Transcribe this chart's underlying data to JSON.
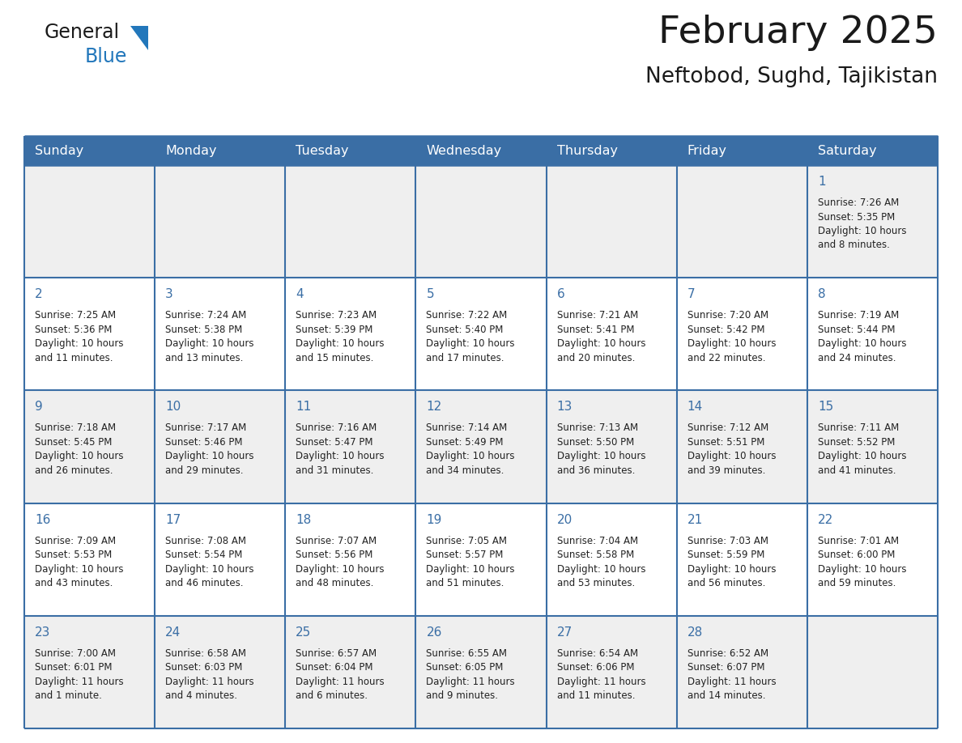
{
  "title": "February 2025",
  "subtitle": "Neftobod, Sughd, Tajikistan",
  "days_of_week": [
    "Sunday",
    "Monday",
    "Tuesday",
    "Wednesday",
    "Thursday",
    "Friday",
    "Saturday"
  ],
  "header_bg": "#3a6ea5",
  "header_text_color": "#ffffff",
  "odd_row_bg": "#efefef",
  "even_row_bg": "#ffffff",
  "cell_text_color": "#222222",
  "day_number_color": "#3a6ea5",
  "grid_color": "#3a6ea5",
  "calendar": [
    [
      null,
      null,
      null,
      null,
      null,
      null,
      {
        "day": 1,
        "sunrise": "7:26 AM",
        "sunset": "5:35 PM",
        "daylight": "10 hours\nand 8 minutes."
      }
    ],
    [
      {
        "day": 2,
        "sunrise": "7:25 AM",
        "sunset": "5:36 PM",
        "daylight": "10 hours\nand 11 minutes."
      },
      {
        "day": 3,
        "sunrise": "7:24 AM",
        "sunset": "5:38 PM",
        "daylight": "10 hours\nand 13 minutes."
      },
      {
        "day": 4,
        "sunrise": "7:23 AM",
        "sunset": "5:39 PM",
        "daylight": "10 hours\nand 15 minutes."
      },
      {
        "day": 5,
        "sunrise": "7:22 AM",
        "sunset": "5:40 PM",
        "daylight": "10 hours\nand 17 minutes."
      },
      {
        "day": 6,
        "sunrise": "7:21 AM",
        "sunset": "5:41 PM",
        "daylight": "10 hours\nand 20 minutes."
      },
      {
        "day": 7,
        "sunrise": "7:20 AM",
        "sunset": "5:42 PM",
        "daylight": "10 hours\nand 22 minutes."
      },
      {
        "day": 8,
        "sunrise": "7:19 AM",
        "sunset": "5:44 PM",
        "daylight": "10 hours\nand 24 minutes."
      }
    ],
    [
      {
        "day": 9,
        "sunrise": "7:18 AM",
        "sunset": "5:45 PM",
        "daylight": "10 hours\nand 26 minutes."
      },
      {
        "day": 10,
        "sunrise": "7:17 AM",
        "sunset": "5:46 PM",
        "daylight": "10 hours\nand 29 minutes."
      },
      {
        "day": 11,
        "sunrise": "7:16 AM",
        "sunset": "5:47 PM",
        "daylight": "10 hours\nand 31 minutes."
      },
      {
        "day": 12,
        "sunrise": "7:14 AM",
        "sunset": "5:49 PM",
        "daylight": "10 hours\nand 34 minutes."
      },
      {
        "day": 13,
        "sunrise": "7:13 AM",
        "sunset": "5:50 PM",
        "daylight": "10 hours\nand 36 minutes."
      },
      {
        "day": 14,
        "sunrise": "7:12 AM",
        "sunset": "5:51 PM",
        "daylight": "10 hours\nand 39 minutes."
      },
      {
        "day": 15,
        "sunrise": "7:11 AM",
        "sunset": "5:52 PM",
        "daylight": "10 hours\nand 41 minutes."
      }
    ],
    [
      {
        "day": 16,
        "sunrise": "7:09 AM",
        "sunset": "5:53 PM",
        "daylight": "10 hours\nand 43 minutes."
      },
      {
        "day": 17,
        "sunrise": "7:08 AM",
        "sunset": "5:54 PM",
        "daylight": "10 hours\nand 46 minutes."
      },
      {
        "day": 18,
        "sunrise": "7:07 AM",
        "sunset": "5:56 PM",
        "daylight": "10 hours\nand 48 minutes."
      },
      {
        "day": 19,
        "sunrise": "7:05 AM",
        "sunset": "5:57 PM",
        "daylight": "10 hours\nand 51 minutes."
      },
      {
        "day": 20,
        "sunrise": "7:04 AM",
        "sunset": "5:58 PM",
        "daylight": "10 hours\nand 53 minutes."
      },
      {
        "day": 21,
        "sunrise": "7:03 AM",
        "sunset": "5:59 PM",
        "daylight": "10 hours\nand 56 minutes."
      },
      {
        "day": 22,
        "sunrise": "7:01 AM",
        "sunset": "6:00 PM",
        "daylight": "10 hours\nand 59 minutes."
      }
    ],
    [
      {
        "day": 23,
        "sunrise": "7:00 AM",
        "sunset": "6:01 PM",
        "daylight": "11 hours\nand 1 minute."
      },
      {
        "day": 24,
        "sunrise": "6:58 AM",
        "sunset": "6:03 PM",
        "daylight": "11 hours\nand 4 minutes."
      },
      {
        "day": 25,
        "sunrise": "6:57 AM",
        "sunset": "6:04 PM",
        "daylight": "11 hours\nand 6 minutes."
      },
      {
        "day": 26,
        "sunrise": "6:55 AM",
        "sunset": "6:05 PM",
        "daylight": "11 hours\nand 9 minutes."
      },
      {
        "day": 27,
        "sunrise": "6:54 AM",
        "sunset": "6:06 PM",
        "daylight": "11 hours\nand 11 minutes."
      },
      {
        "day": 28,
        "sunrise": "6:52 AM",
        "sunset": "6:07 PM",
        "daylight": "11 hours\nand 14 minutes."
      },
      null
    ]
  ],
  "logo_general_color": "#1a1a1a",
  "logo_blue_color": "#2277bb",
  "logo_triangle_color": "#2277bb",
  "title_color": "#1a1a1a",
  "subtitle_color": "#1a1a1a"
}
